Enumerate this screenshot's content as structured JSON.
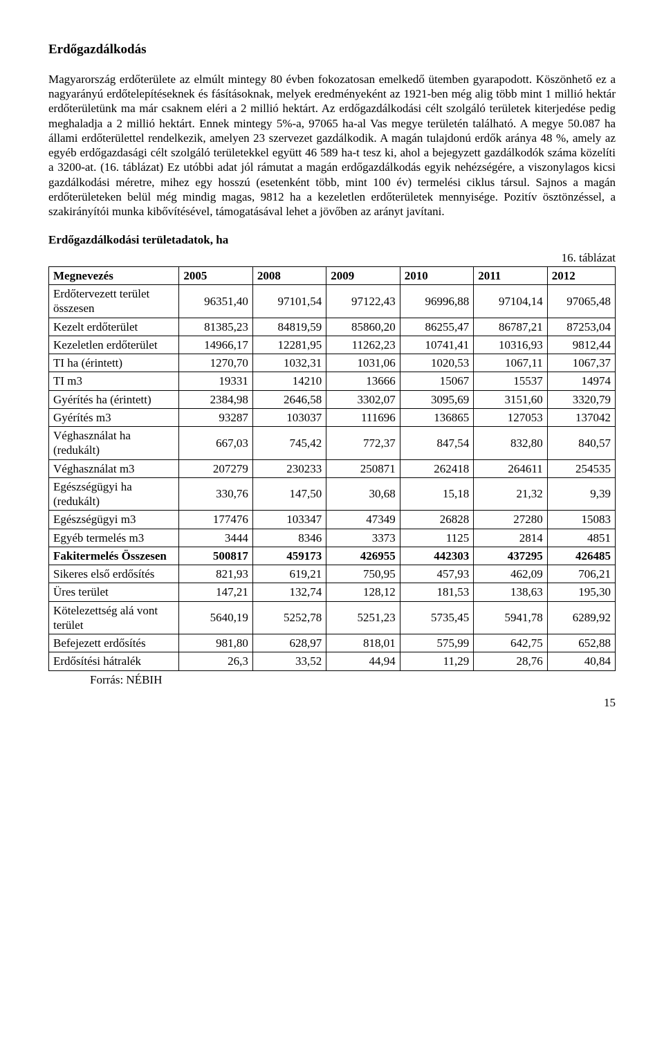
{
  "title": "Erdőgazdálkodás",
  "paragraph": "Magyarország erdőterülete az elmúlt mintegy 80 évben fokozatosan emelkedő ütemben gyarapodott. Köszönhető ez a nagyarányú erdőtelepítéseknek és fásításoknak, melyek eredményeként az 1921-ben még alig több mint 1 millió hektár erdőterületünk ma már csaknem eléri a 2 millió hektárt. Az erdőgazdálkodási célt szolgáló területek kiterjedése pedig meghaladja a 2 millió hektárt. Ennek mintegy 5%-a, 97065 ha-al Vas megye területén található. A megye 50.087 ha állami erdőterülettel rendelkezik, amelyen 23 szervezet gazdálkodik. A magán tulajdonú erdők aránya 48 %, amely az egyéb erdőgazdasági célt szolgáló területekkel együtt 46 589 ha-t tesz ki, ahol a bejegyzett gazdálkodók száma közelíti a 3200-at. (16. táblázat) Ez utóbbi adat jól rámutat a magán erdőgazdálkodás egyik nehézségére, a viszonylagos kicsi gazdálkodási méretre, mihez egy hosszú (esetenként több, mint 100 év) termelési ciklus társul. Sajnos a magán erdőterületeken belül még mindig magas, 9812 ha a kezeletlen erdőterületek mennyisége. Pozitív ösztönzéssel, a szakirányítói munka kibővítésével, támogatásával lehet a jövőben az arányt javítani.",
  "table_title": "Erdőgazdálkodási területadatok, ha",
  "table_caption": "16. táblázat",
  "table": {
    "columns": [
      "Megnevezés",
      "2005",
      "2008",
      "2009",
      "2010",
      "2011",
      "2012"
    ],
    "col_widths": [
      "23%",
      "13%",
      "13%",
      "13%",
      "13%",
      "13%",
      "12%"
    ],
    "rows": [
      [
        "Erdőtervezett terület összesen",
        "96351,40",
        "97101,54",
        "97122,43",
        "96996,88",
        "97104,14",
        "97065,48"
      ],
      [
        "Kezelt erdőterület",
        "81385,23",
        "84819,59",
        "85860,20",
        "86255,47",
        "86787,21",
        "87253,04"
      ],
      [
        "Kezeletlen erdőterület",
        "14966,17",
        "12281,95",
        "11262,23",
        "10741,41",
        "10316,93",
        "9812,44"
      ],
      [
        "TI ha (érintett)",
        "1270,70",
        "1032,31",
        "1031,06",
        "1020,53",
        "1067,11",
        "1067,37"
      ],
      [
        "TI m3",
        "19331",
        "14210",
        "13666",
        "15067",
        "15537",
        "14974"
      ],
      [
        "Gyérítés ha (érintett)",
        "2384,98",
        "2646,58",
        "3302,07",
        "3095,69",
        "3151,60",
        "3320,79"
      ],
      [
        "Gyérítés m3",
        "93287",
        "103037",
        "111696",
        "136865",
        "127053",
        "137042"
      ],
      [
        "Véghasználat ha (redukált)",
        "667,03",
        "745,42",
        "772,37",
        "847,54",
        "832,80",
        "840,57"
      ],
      [
        "Véghasználat m3",
        "207279",
        "230233",
        "250871",
        "262418",
        "264611",
        "254535"
      ],
      [
        "Egészségügyi ha (redukált)",
        "330,76",
        "147,50",
        "30,68",
        "15,18",
        "21,32",
        "9,39"
      ],
      [
        "Egészségügyi m3",
        "177476",
        "103347",
        "47349",
        "26828",
        "27280",
        "15083"
      ],
      [
        "Egyéb termelés m3",
        "3444",
        "8346",
        "3373",
        "1125",
        "2814",
        "4851"
      ],
      [
        "Fakitermelés Összesen",
        "500817",
        "459173",
        "426955",
        "442303",
        "437295",
        "426485"
      ],
      [
        "Sikeres első erdősítés",
        "821,93",
        "619,21",
        "750,95",
        "457,93",
        "462,09",
        "706,21"
      ],
      [
        "Üres terület",
        "147,21",
        "132,74",
        "128,12",
        "181,53",
        "138,63",
        "195,30"
      ],
      [
        "Kötelezettség alá vont terület",
        "5640,19",
        "5252,78",
        "5251,23",
        "5735,45",
        "5941,78",
        "6289,92"
      ],
      [
        "Befejezett erdősítés",
        "981,80",
        "628,97",
        "818,01",
        "575,99",
        "642,75",
        "652,88"
      ],
      [
        "Erdősítési hátralék",
        "26,3",
        "33,52",
        "44,94",
        "11,29",
        "28,76",
        "40,84"
      ]
    ],
    "bold_rows": [
      12
    ]
  },
  "source": "Forrás: NÉBIH",
  "page_number": "15"
}
